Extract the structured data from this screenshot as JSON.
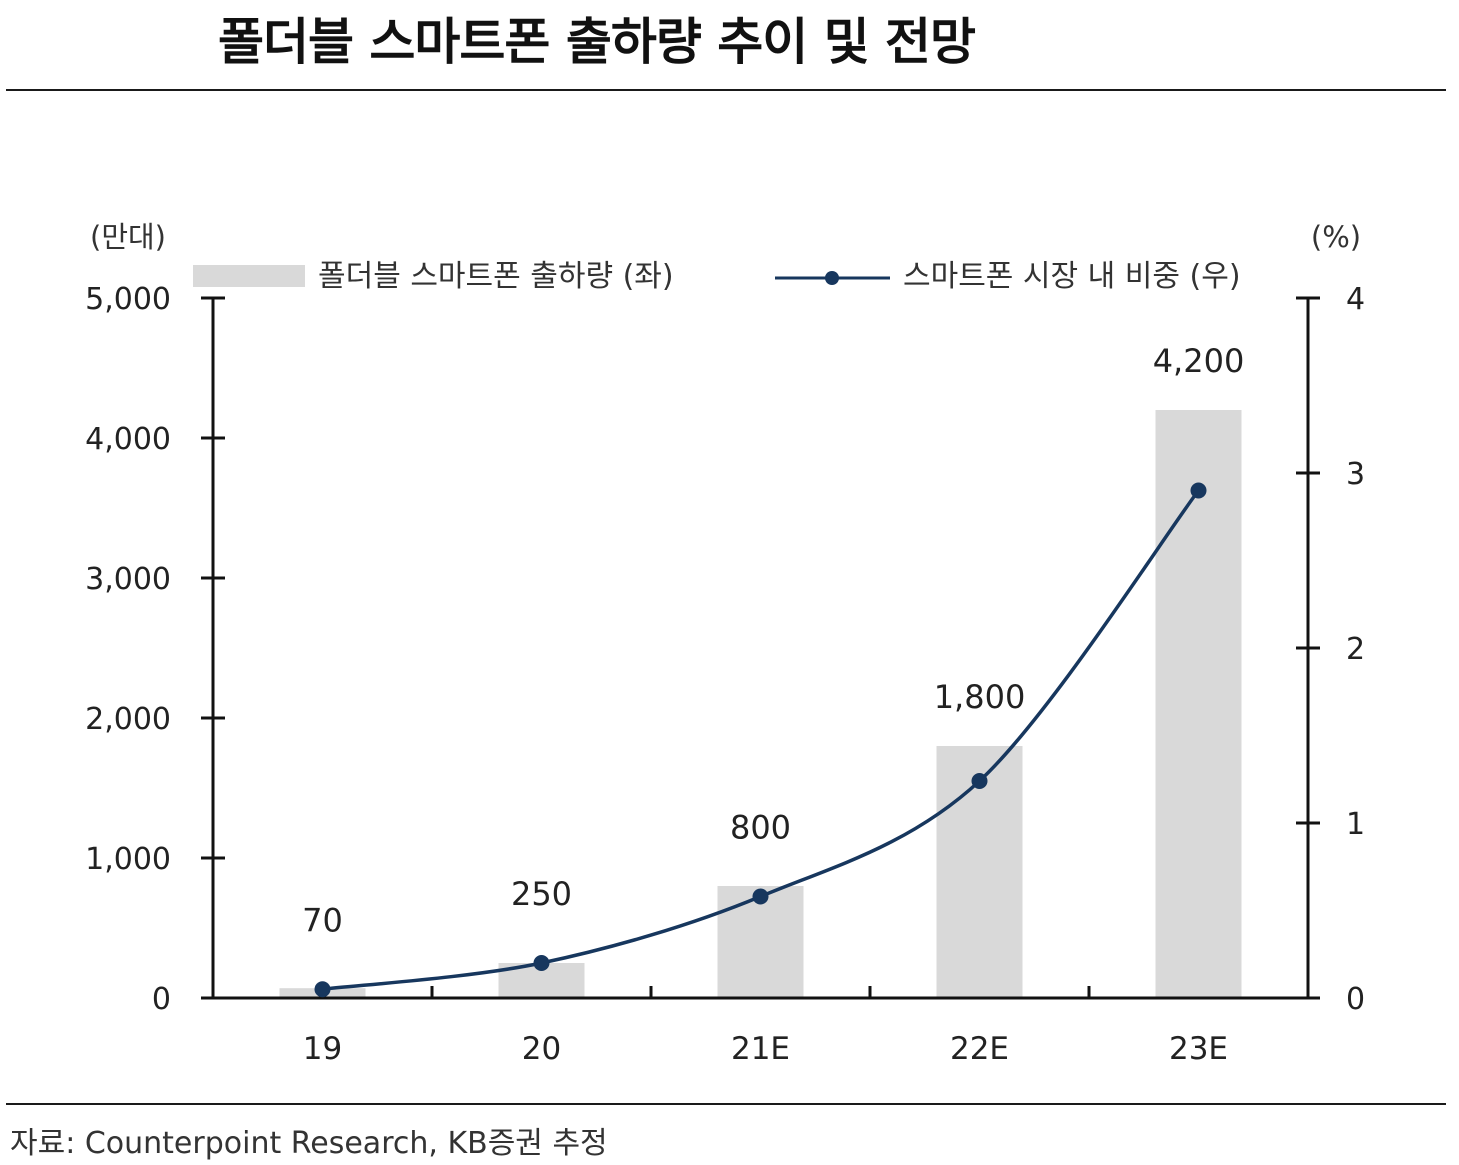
{
  "title": "폴더블 스마트폰 출하량 추이 및 전망",
  "source": "자료: Counterpoint Research, KB증권 추정",
  "colors": {
    "bar": "#d9d9d9",
    "line": "#17375e",
    "axis": "#111111",
    "text": "#222222"
  },
  "chart_data": {
    "type": "bar+line",
    "categories": [
      "19",
      "20",
      "21E",
      "22E",
      "23E"
    ],
    "series": [
      {
        "name": "폴더블 스마트폰 출하량 (좌)",
        "type": "bar",
        "axis": "left",
        "values": [
          70,
          250,
          800,
          1800,
          4200
        ],
        "data_labels": [
          "70",
          "250",
          "800",
          "1,800",
          "4,200"
        ]
      },
      {
        "name": "스마트폰 시장 내 비중 (우)",
        "type": "line",
        "axis": "right",
        "values": [
          0.05,
          0.2,
          0.58,
          1.24,
          2.9
        ]
      }
    ],
    "y_left": {
      "unit_label": "(만대)",
      "range": [
        0,
        5000
      ],
      "ticks": [
        0,
        1000,
        2000,
        3000,
        4000,
        5000
      ],
      "tick_labels": [
        "0",
        "1,000",
        "2,000",
        "3,000",
        "4,000",
        "5,000"
      ]
    },
    "y_right": {
      "unit_label": "(%)",
      "range": [
        0,
        4
      ],
      "ticks": [
        0,
        1,
        2,
        3,
        4
      ],
      "tick_labels": [
        "0",
        "1",
        "2",
        "3",
        "4"
      ]
    },
    "grid": false,
    "legend": "top"
  }
}
